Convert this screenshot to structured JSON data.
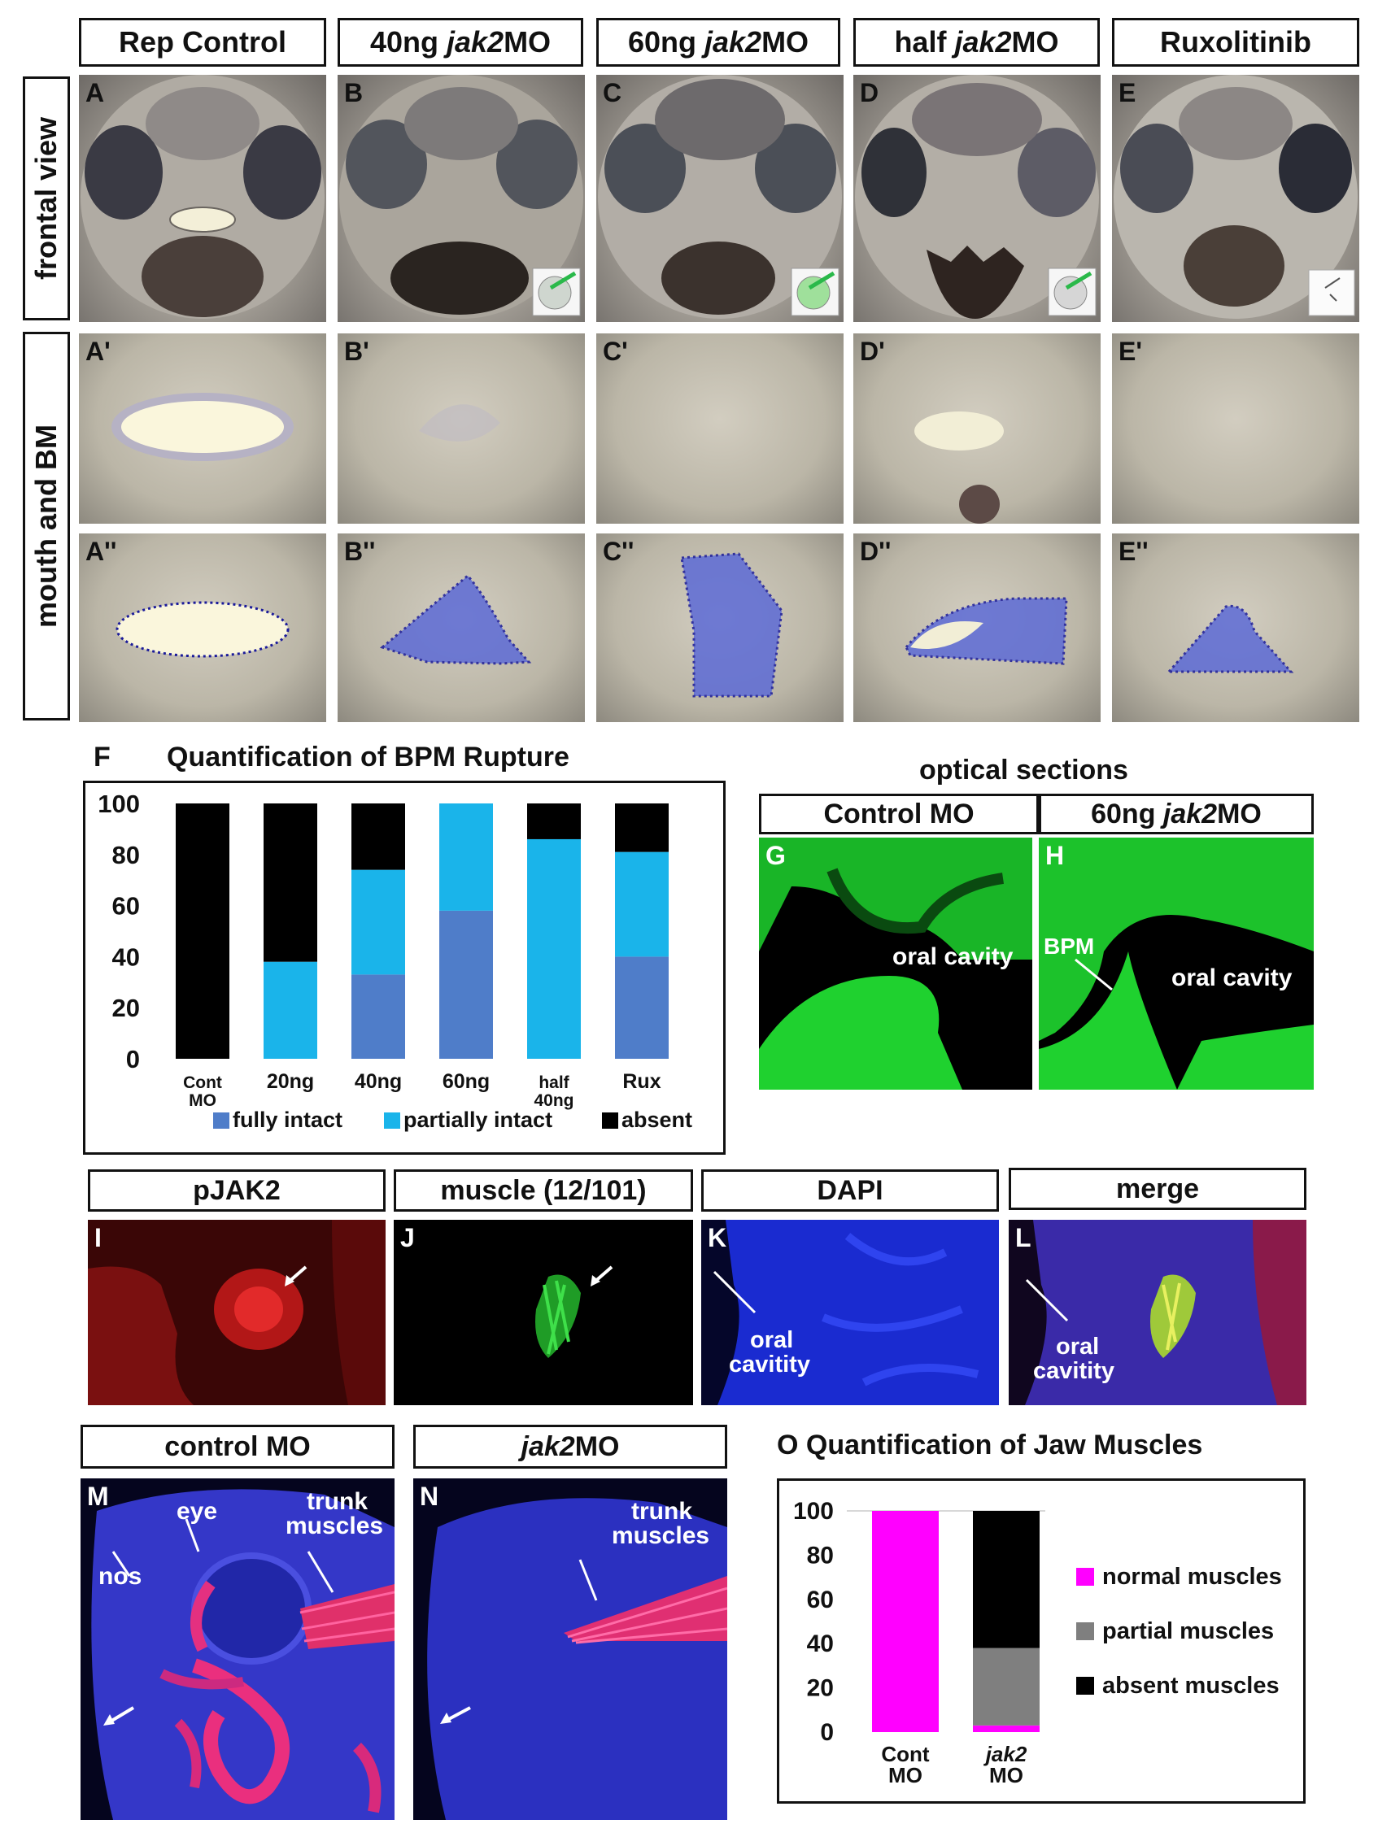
{
  "top_headers": {
    "rep_control": "Rep Control",
    "ng40_pre": "40ng ",
    "ng40_gene": "jak2",
    "ng40_post": " MO",
    "ng60_pre": "60ng ",
    "ng60_gene": "jak2",
    "ng60_post": " MO",
    "half_pre": "half ",
    "half_gene": "jak2",
    "half_post": " MO",
    "ruxolitinib": "Ruxolitinib"
  },
  "row_labels": {
    "frontal": "frontal view",
    "mouth": "mouth and BM"
  },
  "panel_letters": {
    "A": "A",
    "B": "B",
    "C": "C",
    "D": "D",
    "E": "E",
    "A1": "A'",
    "B1": "B'",
    "C1": "C'",
    "D1": "D'",
    "E1": "E'",
    "A2": "A''",
    "B2": "B''",
    "C2": "C''",
    "D2": "D''",
    "E2": "E''",
    "F": "F",
    "G": "G",
    "H": "H",
    "I": "I",
    "J": "J",
    "K": "K",
    "L": "L",
    "M": "M",
    "N": "N"
  },
  "optical": {
    "title": "optical sections",
    "control": "Control MO",
    "ng60_pre": "60ng ",
    "ng60_gene": "jak2",
    "ng60_post": " MO",
    "g_label": "oral cavity",
    "h_bpm": "BPM",
    "h_label": "oral cavity"
  },
  "stain_headers": {
    "pjak2": "pJAK2",
    "muscle": "muscle (12/101)",
    "dapi": "DAPI",
    "merge": "merge"
  },
  "k_label": {
    "l1": "oral",
    "l2": "cavitity"
  },
  "l_label": {
    "l1": "oral",
    "l2": "cavitity"
  },
  "jaw_headers": {
    "control": "control MO",
    "jak2_gene": "jak2",
    "jak2_post": " MO"
  },
  "m_labels": {
    "eye": "eye",
    "nos": "nos",
    "trunk1": "trunk",
    "trunk2": "muscles"
  },
  "n_labels": {
    "trunk1": "trunk",
    "trunk2": "muscles"
  },
  "colors": {
    "fully_intact": "#4f7dc9",
    "partially_intact": "#1ab4ea",
    "absent": "#000000",
    "normal_muscles": "#ff00ff",
    "partial_muscles": "#7f7f7f",
    "absent_muscles": "#000000",
    "confocal_green": "#1fd12f",
    "dapi_blue": "#1a2bd0"
  },
  "chart_data": [
    {
      "type": "bar",
      "stacked": true,
      "title": "Quantification of BPM Rupture",
      "panel": "F",
      "categories": [
        "Cont MO",
        "20ng",
        "40ng",
        "60ng",
        "half 40ng",
        "Rux"
      ],
      "series": [
        {
          "name": "fully intact",
          "values": [
            0,
            0,
            33,
            58,
            0,
            40
          ]
        },
        {
          "name": "partially intact",
          "values": [
            0,
            38,
            41,
            42,
            86,
            41
          ]
        },
        {
          "name": "absent",
          "values": [
            100,
            62,
            26,
            0,
            14,
            19
          ]
        }
      ],
      "yticks": [
        "0",
        "20",
        "40",
        "60",
        "80",
        "100"
      ],
      "ylim": [
        0,
        100
      ],
      "legend": "bottom"
    },
    {
      "type": "bar",
      "stacked": true,
      "title": "O Quantification of Jaw Muscles",
      "categories": [
        "Cont MO",
        "jak2 MO"
      ],
      "series": [
        {
          "name": "normal muscles",
          "values": [
            100,
            3
          ]
        },
        {
          "name": "partial muscles",
          "values": [
            0,
            35
          ]
        },
        {
          "name": "absent muscles",
          "values": [
            0,
            62
          ]
        }
      ],
      "yticks": [
        "0",
        "20",
        "40",
        "60",
        "80",
        "100"
      ],
      "ylim": [
        0,
        100
      ],
      "legend": "right"
    }
  ]
}
